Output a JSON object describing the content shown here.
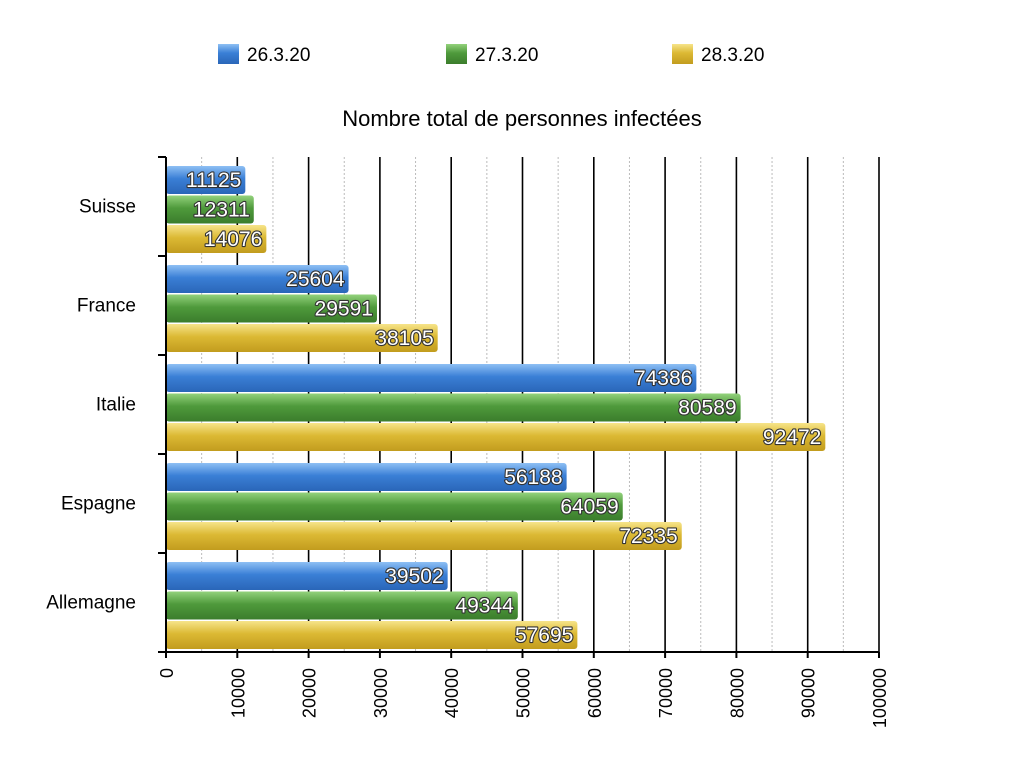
{
  "colors": {
    "series": [
      "#3a7fd6",
      "#4f9a3c",
      "#dcb934"
    ],
    "series_light": [
      "#8ec0f4",
      "#93d27c",
      "#f6e48a"
    ],
    "series_dark": [
      "#2a66b8",
      "#3b7d2c",
      "#c29c1e"
    ]
  },
  "chart_data": {
    "type": "bar",
    "orientation": "horizontal",
    "title": "Nombre total de personnes infectées",
    "categories": [
      "Suisse",
      "France",
      "Italie",
      "Espagne",
      "Allemagne"
    ],
    "series": [
      {
        "name": "26.3.20",
        "values": [
          11125,
          25604,
          74386,
          56188,
          39502
        ]
      },
      {
        "name": "27.3.20",
        "values": [
          12311,
          29591,
          80589,
          64059,
          49344
        ]
      },
      {
        "name": "28.3.20",
        "values": [
          14076,
          38105,
          92472,
          72335,
          57695
        ]
      }
    ],
    "xlim": [
      0,
      100000
    ],
    "xticks": [
      "0",
      "10000",
      "20000",
      "30000",
      "40000",
      "50000",
      "60000",
      "70000",
      "80000",
      "90000",
      "100000"
    ],
    "data_labels": true,
    "grid": {
      "major": true,
      "minor_dotted": true
    },
    "legend_position": "top"
  }
}
